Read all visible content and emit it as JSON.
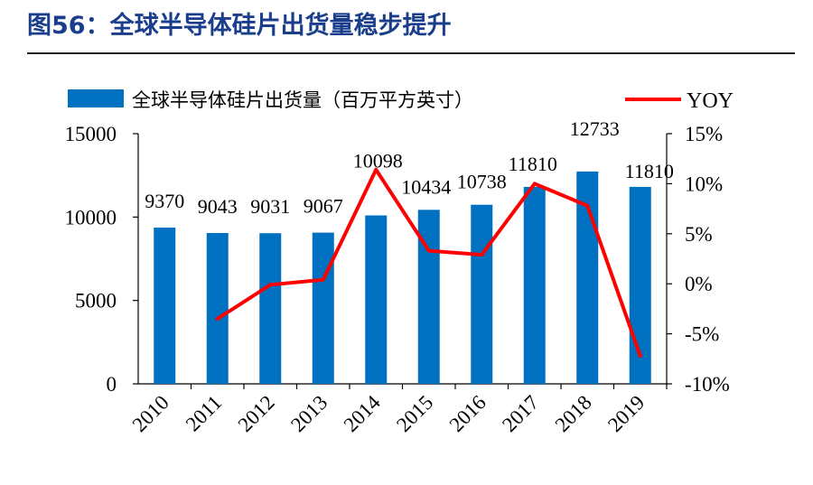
{
  "title": "图56：全球半导体硅片出货量稳步提升",
  "chart_data": {
    "type": "bar+line",
    "categories": [
      "2010",
      "2011",
      "2012",
      "2013",
      "2014",
      "2015",
      "2016",
      "2017",
      "2018",
      "2019"
    ],
    "series": [
      {
        "name": "全球半导体硅片出货量（百万平方英寸）",
        "type": "bar",
        "axis": "left",
        "color": "#0070c0",
        "values": [
          9370,
          9043,
          9031,
          9067,
          10098,
          10434,
          10738,
          11810,
          12733,
          11810
        ]
      },
      {
        "name": "YOY",
        "type": "line",
        "axis": "right",
        "color": "#ff0000",
        "values": [
          null,
          -3.5,
          -0.1,
          0.4,
          11.4,
          3.3,
          2.9,
          10.0,
          7.8,
          -7.2
        ]
      }
    ],
    "data_labels": [
      "9370",
      "9043",
      "9031",
      "9067",
      "10098",
      "10434",
      "10738",
      "11810",
      "12733",
      "11810"
    ],
    "y_left": {
      "min": 0,
      "max": 15000,
      "ticks": [
        "0",
        "5000",
        "10000",
        "15000"
      ]
    },
    "y_right": {
      "min": -10,
      "max": 15,
      "ticks": [
        "-10%",
        "-5%",
        "0%",
        "5%",
        "10%",
        "15%"
      ]
    },
    "legend": {
      "position": "top"
    }
  }
}
